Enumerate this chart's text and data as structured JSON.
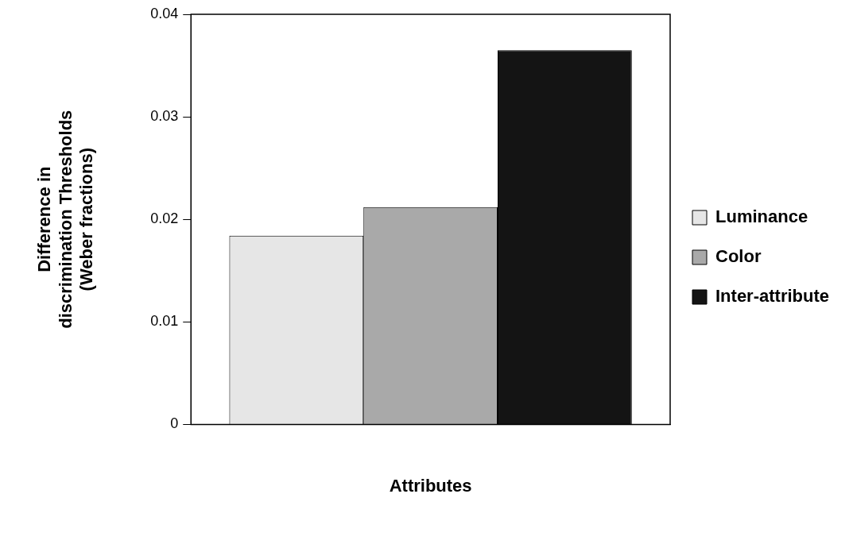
{
  "chart_data": {
    "type": "bar",
    "xlabel": "Attributes",
    "ylabel": "Difference in\ndiscrimination Thresholds\n(Weber fractions)",
    "categories": [
      null
    ],
    "series": [
      {
        "name": "Luminance",
        "color": "#e6e6e6",
        "values": [
          0.0184
        ]
      },
      {
        "name": "Color",
        "color": "#a9a9a9",
        "values": [
          0.0212
        ]
      },
      {
        "name": "Inter-attribute",
        "color": "#141414",
        "values": [
          0.0365
        ]
      }
    ],
    "ylim": [
      0,
      0.04
    ],
    "yticks": [
      0,
      0.01,
      0.02,
      0.03,
      0.04
    ],
    "grid": false,
    "legend": "right"
  }
}
